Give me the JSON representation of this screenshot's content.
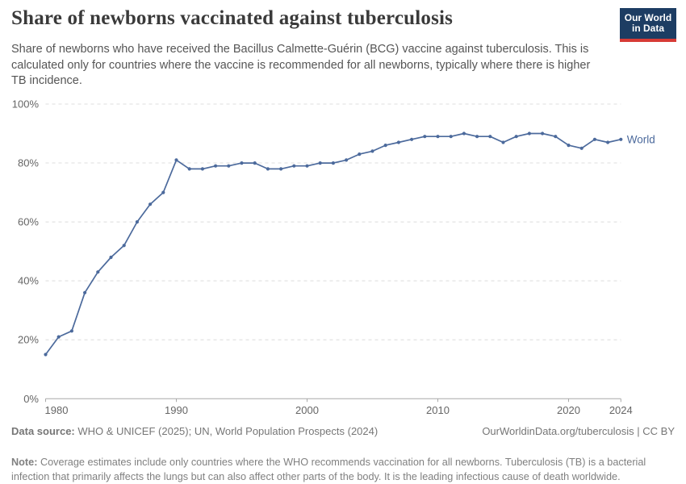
{
  "header": {
    "title": "Share of newborns vaccinated against tuberculosis",
    "subtitle": "Share of newborns who have received the Bacillus Calmette-Guérin (BCG) vaccine against tuberculosis. This is calculated only for countries where the vaccine is recommended for all newborns, typically where there is higher TB incidence.",
    "logo": {
      "line1": "Our World",
      "line2": "in Data",
      "bg_color": "#1d3d63",
      "accent_color": "#d73b36"
    }
  },
  "chart_data": {
    "type": "line",
    "title": "Share of newborns vaccinated against tuberculosis",
    "x": [
      1980,
      1981,
      1982,
      1983,
      1984,
      1985,
      1986,
      1987,
      1988,
      1989,
      1990,
      1991,
      1992,
      1993,
      1994,
      1995,
      1996,
      1997,
      1998,
      1999,
      2000,
      2001,
      2002,
      2003,
      2004,
      2005,
      2006,
      2007,
      2008,
      2009,
      2010,
      2011,
      2012,
      2013,
      2014,
      2015,
      2016,
      2017,
      2018,
      2019,
      2020,
      2021,
      2022,
      2023,
      2024
    ],
    "series": [
      {
        "name": "World",
        "color": "#4c6a9c",
        "values": [
          15,
          21,
          23,
          36,
          43,
          48,
          52,
          60,
          66,
          70,
          81,
          78,
          78,
          79,
          79,
          80,
          80,
          78,
          78,
          79,
          79,
          80,
          80,
          81,
          83,
          84,
          86,
          87,
          88,
          89,
          89,
          89,
          90,
          89,
          89,
          87,
          89,
          90,
          90,
          89,
          86,
          85,
          88,
          87,
          88
        ]
      }
    ],
    "xlabel": "",
    "ylabel": "",
    "ylim": [
      0,
      100
    ],
    "xlim": [
      1980,
      2024
    ],
    "y_ticks": [
      0,
      20,
      40,
      60,
      80,
      100
    ],
    "y_tick_suffix": "%",
    "x_ticks": [
      1980,
      1990,
      2000,
      2010,
      2020,
      2024
    ],
    "grid": "horizontal-dashed",
    "legend_position": "end-of-line-label",
    "grid_color": "#dcdcdc",
    "axis_color": "#a9a9a9",
    "tick_label_color": "#666666"
  },
  "footer": {
    "data_source_label": "Data source:",
    "data_source_text": " WHO & UNICEF (2025); UN, World Population Prospects (2024)",
    "link_text": "OurWorldinData.org/tuberculosis",
    "separator": " | ",
    "license_text": "CC BY",
    "note_label": "Note:",
    "note_text": " Coverage estimates include only countries where the WHO recommends vaccination for all newborns. Tuberculosis (TB) is a bacterial infection that primarily affects the lungs but can also affect other parts of the body. It is the leading infectious cause of death worldwide."
  }
}
